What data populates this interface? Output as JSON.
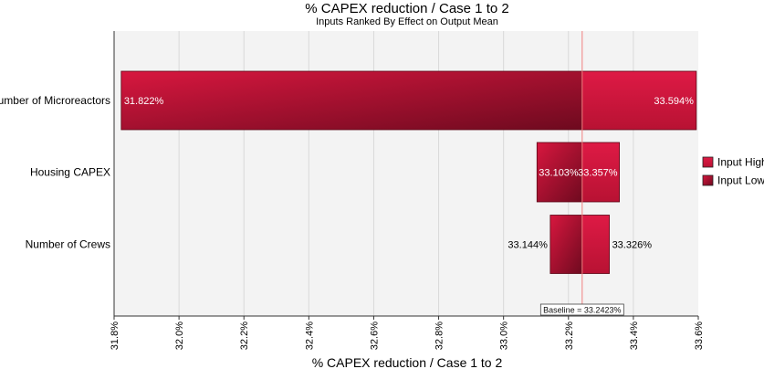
{
  "chart_data": {
    "type": "tornado",
    "title": "% CAPEX reduction / Case 1 to 2",
    "subtitle": "Inputs Ranked By Effect on Output Mean",
    "xlabel": "% CAPEX reduction / Case 1 to 2",
    "xlim": [
      31.8,
      33.6
    ],
    "x_ticks": [
      "31.8%",
      "32.0%",
      "32.2%",
      "32.4%",
      "32.6%",
      "32.8%",
      "33.0%",
      "33.2%",
      "33.4%",
      "33.6%"
    ],
    "baseline": 33.2423,
    "baseline_label": "Baseline = 33.2423%",
    "grid": true,
    "legend_position": "right",
    "legend": [
      "Input High",
      "Input Low"
    ],
    "colors": {
      "input_high": "#cc1439",
      "input_low": "#9c1030",
      "baseline_line": "#f08080",
      "grid": "#dcdcdc",
      "plot_bg": "#f3f3f3"
    },
    "categories": [
      "Number of Microreactors",
      "Housing CAPEX",
      "Number of Crews"
    ],
    "series": [
      {
        "name": "Input High",
        "values": [
          33.594,
          33.357,
          33.326
        ],
        "labels": [
          "33.594%",
          "33.357%",
          "33.326%"
        ]
      },
      {
        "name": "Input Low",
        "values": [
          31.822,
          33.103,
          33.144
        ],
        "labels": [
          "31.822%",
          "33.103%",
          "33.144%"
        ]
      }
    ]
  }
}
